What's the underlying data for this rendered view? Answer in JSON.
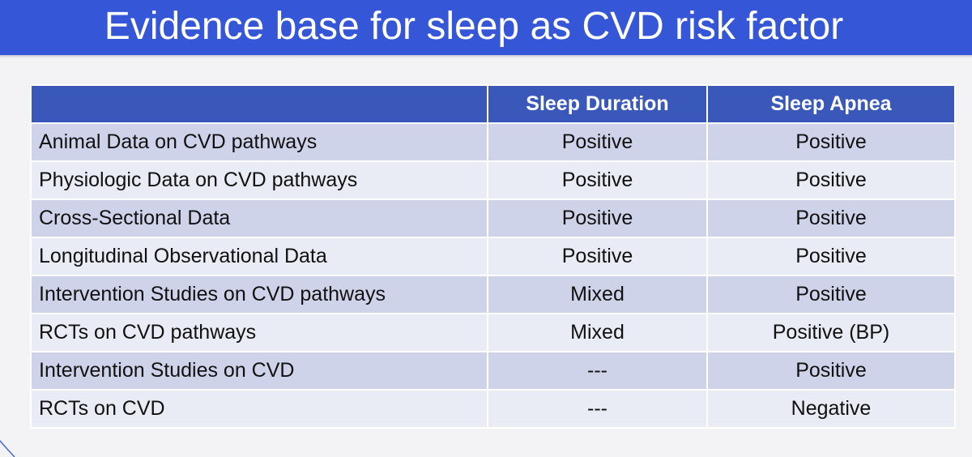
{
  "header": {
    "title": "Evidence base for sleep as CVD risk factor"
  },
  "table": {
    "columns": [
      "Sleep Duration",
      "Sleep Apnea"
    ],
    "rows": [
      [
        "Animal Data on CVD pathways",
        "Positive",
        "Positive"
      ],
      [
        "Physiologic Data on CVD pathways",
        "Positive",
        "Positive"
      ],
      [
        "Cross-Sectional Data",
        "Positive",
        "Positive"
      ],
      [
        "Longitudinal Observational Data",
        "Positive",
        "Positive"
      ],
      [
        "Intervention Studies on CVD pathways",
        "Mixed",
        "Positive"
      ],
      [
        "RCTs on CVD pathways",
        "Mixed",
        "Positive (BP)"
      ],
      [
        "Intervention Studies on CVD",
        "---",
        "Positive"
      ],
      [
        "RCTs on CVD",
        "---",
        "Negative"
      ]
    ]
  }
}
